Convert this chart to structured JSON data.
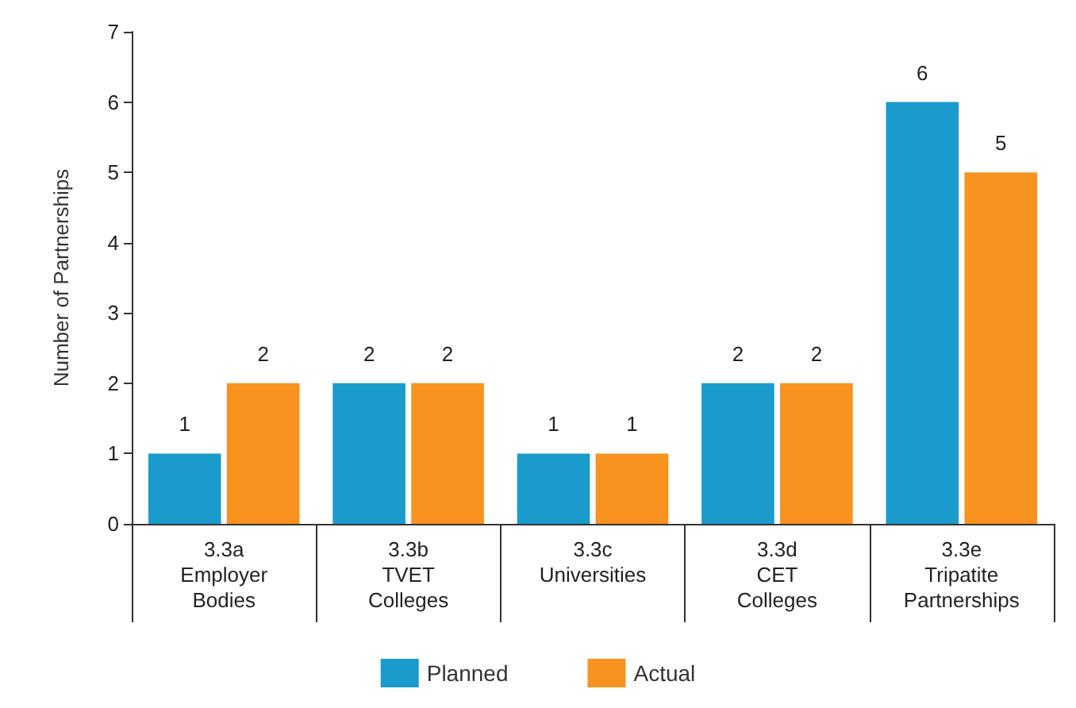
{
  "chart_data": {
    "type": "bar",
    "ylabel": "Number of Partnerships",
    "categories": [
      "3.3a\nEmployer\nBodies",
      "3.3b\nTVET\nColleges",
      "3.3c\nUniversities",
      "3.3d\nCET\nColleges",
      "3.3e\nTripatite\nPartnerships"
    ],
    "series": [
      {
        "name": "Planned",
        "color": "#1b9bcb",
        "values": [
          1,
          2,
          1,
          2,
          6
        ]
      },
      {
        "name": "Actual",
        "color": "#f7931e",
        "values": [
          2,
          2,
          1,
          2,
          5
        ]
      }
    ],
    "ylim": [
      0,
      7
    ],
    "yticks": [
      0,
      1,
      2,
      3,
      4,
      5,
      6,
      7
    ],
    "grid": false,
    "legend": "bottom",
    "data_labels": true
  }
}
